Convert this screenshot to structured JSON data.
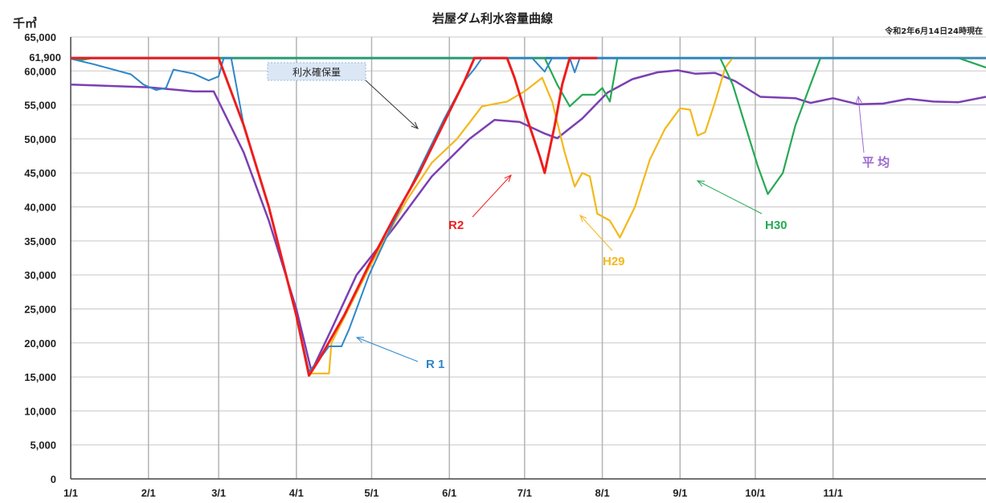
{
  "chart_data": {
    "type": "line",
    "title": "岩屋ダム利水容量曲線",
    "unit_label": "千㎥",
    "as_of": "令和2年6月14日24時現在",
    "ylim": [
      0,
      65000
    ],
    "yticks": [
      "0",
      "5,000",
      "10,000",
      "15,000",
      "20,000",
      "25,000",
      "30,000",
      "35,000",
      "40,000",
      "45,000",
      "50,000",
      "55,000",
      "60,000",
      "65,000"
    ],
    "ytick_values": [
      0,
      5000,
      10000,
      15000,
      20000,
      25000,
      30000,
      35000,
      40000,
      45000,
      50000,
      55000,
      60000,
      65000
    ],
    "capacity_label": "61,900",
    "capacity_value": 61900,
    "xticks": [
      "1/1",
      "2/1",
      "3/1",
      "4/1",
      "5/1",
      "6/1",
      "7/1",
      "8/1",
      "9/1",
      "10/1",
      "11/1"
    ],
    "x_unit": "day of year (1 = Jan 1)",
    "xlim": [
      1,
      366
    ],
    "grid": true,
    "annotations": {
      "guarantee": "利水確保量",
      "r2": "R2",
      "r1": "R 1",
      "h29": "H29",
      "h30": "H30",
      "average": "平 均"
    },
    "series": [
      {
        "name": "利水確保量",
        "color": "#2878b4",
        "points": [
          [
            1,
            61900
          ],
          [
            105,
            61900
          ],
          [
            366,
            61900
          ]
        ]
      },
      {
        "name": "平 均",
        "color": "#7b3fb3",
        "points": [
          [
            1,
            58000
          ],
          [
            32,
            57600
          ],
          [
            50,
            57000
          ],
          [
            58,
            57000
          ],
          [
            70,
            48000
          ],
          [
            80,
            38000
          ],
          [
            91,
            25000
          ],
          [
            97,
            15800
          ],
          [
            105,
            22000
          ],
          [
            115,
            30000
          ],
          [
            130,
            37000
          ],
          [
            145,
            44500
          ],
          [
            160,
            50000
          ],
          [
            170,
            52800
          ],
          [
            180,
            52500
          ],
          [
            190,
            50800
          ],
          [
            195,
            50100
          ],
          [
            205,
            53000
          ],
          [
            215,
            56800
          ],
          [
            225,
            58800
          ],
          [
            235,
            59800
          ],
          [
            243,
            60100
          ],
          [
            250,
            59600
          ],
          [
            258,
            59700
          ],
          [
            266,
            58500
          ],
          [
            276,
            56200
          ],
          [
            290,
            56000
          ],
          [
            296,
            55300
          ],
          [
            305,
            56000
          ],
          [
            315,
            55100
          ],
          [
            325,
            55200
          ],
          [
            335,
            55900
          ],
          [
            345,
            55500
          ],
          [
            355,
            55400
          ],
          [
            366,
            56200
          ]
        ]
      },
      {
        "name": "R 1",
        "color": "#2e86c9",
        "points": [
          [
            1,
            61800
          ],
          [
            10,
            61000
          ],
          [
            25,
            59500
          ],
          [
            30,
            58000
          ],
          [
            35,
            57200
          ],
          [
            39,
            57500
          ],
          [
            42,
            60200
          ],
          [
            50,
            59600
          ],
          [
            56,
            58600
          ],
          [
            60,
            59200
          ],
          [
            62,
            61900
          ],
          [
            65,
            61900
          ],
          [
            70,
            52000
          ],
          [
            80,
            40000
          ],
          [
            91,
            24000
          ],
          [
            96,
            15800
          ],
          [
            100,
            17500
          ],
          [
            104,
            19500
          ],
          [
            109,
            19500
          ],
          [
            112,
            22000
          ],
          [
            120,
            30000
          ],
          [
            130,
            38000
          ],
          [
            140,
            45500
          ],
          [
            150,
            53000
          ],
          [
            158,
            58500
          ],
          [
            162,
            60300
          ],
          [
            165,
            61900
          ],
          [
            185,
            61900
          ],
          [
            190,
            59900
          ],
          [
            193,
            61900
          ],
          [
            200,
            61900
          ],
          [
            202,
            59800
          ],
          [
            204,
            61900
          ],
          [
            366,
            61900
          ]
        ]
      },
      {
        "name": "H29",
        "color": "#f3b81b",
        "points": [
          [
            96,
            15500
          ],
          [
            104,
            15500
          ],
          [
            105,
            20000
          ],
          [
            120,
            31000
          ],
          [
            135,
            41000
          ],
          [
            145,
            46500
          ],
          [
            155,
            50000
          ],
          [
            165,
            54800
          ],
          [
            175,
            55500
          ],
          [
            182,
            57000
          ],
          [
            189,
            59000
          ],
          [
            193,
            55500
          ],
          [
            198,
            48000
          ],
          [
            202,
            43000
          ],
          [
            205,
            45000
          ],
          [
            208,
            44500
          ],
          [
            211,
            39000
          ],
          [
            216,
            38000
          ],
          [
            220,
            35500
          ],
          [
            226,
            40000
          ],
          [
            232,
            47000
          ],
          [
            238,
            51500
          ],
          [
            244,
            54500
          ],
          [
            248,
            54300
          ],
          [
            251,
            50500
          ],
          [
            254,
            51000
          ],
          [
            258,
            55500
          ],
          [
            262,
            60500
          ],
          [
            265,
            61900
          ],
          [
            366,
            61900
          ]
        ]
      },
      {
        "name": "H30",
        "color": "#25a955",
        "points": [
          [
            1,
            62000
          ],
          [
            5,
            61600
          ],
          [
            10,
            61900
          ],
          [
            60,
            61900
          ],
          [
            190,
            61900
          ],
          [
            195,
            58000
          ],
          [
            200,
            54800
          ],
          [
            205,
            56500
          ],
          [
            210,
            56500
          ],
          [
            213,
            57500
          ],
          [
            216,
            55500
          ],
          [
            219,
            61900
          ],
          [
            260,
            61900
          ],
          [
            265,
            58000
          ],
          [
            270,
            52000
          ],
          [
            275,
            46000
          ],
          [
            279,
            41900
          ],
          [
            285,
            45000
          ],
          [
            290,
            52000
          ],
          [
            295,
            57000
          ],
          [
            300,
            61900
          ],
          [
            355,
            61900
          ],
          [
            366,
            60500
          ]
        ]
      },
      {
        "name": "R2",
        "color": "#ee1d1d",
        "points": [
          [
            1,
            61900
          ],
          [
            60,
            61900
          ],
          [
            70,
            52000
          ],
          [
            80,
            40000
          ],
          [
            91,
            24000
          ],
          [
            96,
            15200
          ],
          [
            100,
            17500
          ],
          [
            110,
            24000
          ],
          [
            120,
            31500
          ],
          [
            130,
            38500
          ],
          [
            140,
            45000
          ],
          [
            150,
            52500
          ],
          [
            158,
            58500
          ],
          [
            162,
            61900
          ],
          [
            175,
            61900
          ],
          [
            178,
            59000
          ],
          [
            183,
            53000
          ],
          [
            188,
            47500
          ],
          [
            190,
            45000
          ],
          [
            194,
            52000
          ],
          [
            197,
            58000
          ],
          [
            200,
            61900
          ],
          [
            211,
            61900
          ]
        ]
      }
    ]
  }
}
